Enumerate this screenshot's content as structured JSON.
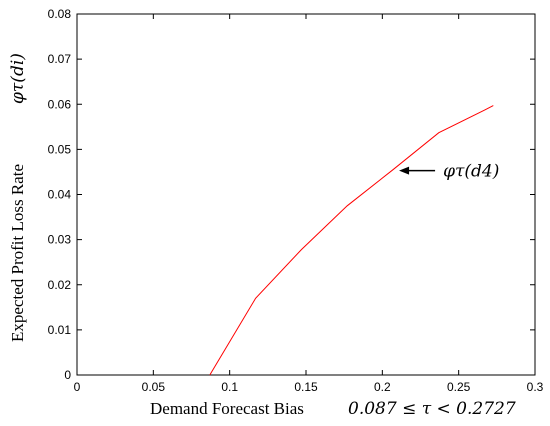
{
  "chart_data": {
    "type": "line",
    "xlabel": "Demand Forecast Bias",
    "xlabel_math": "0.087 ≤ τ < 0.2727",
    "ylabel": "Expected Profit Loss Rate",
    "ylabel_math": "φτ(di)",
    "xlim": [
      0,
      0.3
    ],
    "ylim": [
      0,
      0.08
    ],
    "xticks": [
      "0",
      "0.05",
      "0.1",
      "0.15",
      "0.2",
      "0.25",
      "0.3"
    ],
    "yticks": [
      "0",
      "0.01",
      "0.02",
      "0.03",
      "0.04",
      "0.05",
      "0.06",
      "0.07",
      "0.08"
    ],
    "grid": false,
    "series": [
      {
        "color": "#ff0000",
        "x": [
          0.087,
          0.117,
          0.147,
          0.177,
          0.207,
          0.237,
          0.267,
          0.2727
        ],
        "y": [
          0.0,
          0.017,
          0.0278,
          0.0375,
          0.0455,
          0.0537,
          0.0587,
          0.0597
        ]
      }
    ],
    "annotations": [
      {
        "text": "φτ(d4)",
        "x": 0.209,
        "y": 0.0455,
        "arrow": "left"
      }
    ]
  }
}
